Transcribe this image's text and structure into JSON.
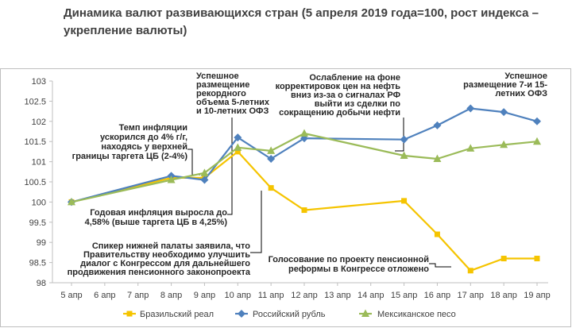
{
  "chart_data": {
    "type": "line",
    "title": "Динамика валют развивающихся стран (5 апреля 2019 года=100, рост индекса – укрепление валюты)",
    "categories": [
      "5 апр",
      "6 апр",
      "7 апр",
      "8 апр",
      "9 апр",
      "10 апр",
      "11 апр",
      "12 апр",
      "13 апр",
      "14 апр",
      "15 апр",
      "16 апр",
      "17 апр",
      "18 апр",
      "19 апр"
    ],
    "ylim": [
      98,
      103
    ],
    "yticks": [
      98,
      98.5,
      99,
      99.5,
      100,
      100.5,
      101,
      101.5,
      102,
      102.5,
      103
    ],
    "ytick_labels": [
      "98",
      "98.5",
      "99",
      "99.5",
      "100",
      "100.5",
      "101",
      "101.5",
      "102",
      "102.5",
      "103"
    ],
    "grid": false,
    "legend_position": "bottom",
    "series": [
      {
        "name": "Бразильский реал",
        "color": "#f5c400",
        "marker": "square",
        "x": [
          0,
          3,
          4,
          5,
          6,
          7,
          10,
          11,
          12,
          13,
          14
        ],
        "values": [
          100.0,
          100.6,
          100.6,
          101.25,
          100.35,
          99.8,
          100.03,
          99.2,
          98.3,
          98.6,
          98.6
        ]
      },
      {
        "name": "Российский рубль",
        "color": "#4f81bd",
        "marker": "diamond",
        "x": [
          0,
          3,
          4,
          5,
          6,
          7,
          10,
          11,
          12,
          13,
          14
        ],
        "values": [
          100.0,
          100.65,
          100.55,
          101.6,
          101.07,
          101.58,
          101.55,
          101.9,
          102.32,
          102.23,
          102.0
        ]
      },
      {
        "name": "Мексиканское песо",
        "color": "#9bbb59",
        "marker": "triangle",
        "x": [
          0,
          3,
          4,
          5,
          6,
          7,
          10,
          11,
          12,
          13,
          14
        ],
        "values": [
          100.0,
          100.55,
          100.72,
          101.35,
          101.27,
          101.7,
          101.15,
          101.07,
          101.33,
          101.42,
          101.5
        ]
      }
    ],
    "annotations": [
      {
        "id": "a1",
        "text": [
          "Успешное",
          "размещение",
          "рекордного",
          "объема 5-летних",
          "и 10-летних ОФЗ"
        ],
        "target_index": 5,
        "target_value": 101.6
      },
      {
        "id": "a2",
        "text": [
          "Темп инфляции",
          "ускорился до 4% г/г,",
          "находясь у верхней",
          "границы таргета ЦБ (2-4%)"
        ],
        "target_index": 4,
        "target_value": 100.6
      },
      {
        "id": "a3",
        "text": [
          "Годовая инфляция выросла до",
          "4,58% (выше таргета ЦБ в 4,25%)"
        ],
        "target_index": 5,
        "target_value": 101.25
      },
      {
        "id": "a4",
        "text": [
          "Спикер нижней палаты заявила, что",
          "Правительству необходимо улучшить",
          "диалог с Конгрессом для дальнейшего",
          "продвижения пенсионного законопроекта"
        ],
        "target_index": 6,
        "target_value": 100.35
      },
      {
        "id": "a5",
        "text": [
          "Ослабление на фоне",
          "корректировок цен на нефть",
          "вниз из-за о сигналах РФ",
          "выйти из сделки по",
          "сокращению добычи нефти"
        ],
        "target_index": 10,
        "target_value": 101.55
      },
      {
        "id": "a6",
        "text": [
          "Успешное",
          "размещение 7-и 15-",
          "летних ОФЗ"
        ],
        "target_index": 12,
        "target_value": 102.32
      },
      {
        "id": "a7",
        "text": [
          "Голосование по проекту пенсионной",
          "реформы в Конгрессе отложено"
        ],
        "target_index": 12,
        "target_value": 98.3
      }
    ]
  }
}
